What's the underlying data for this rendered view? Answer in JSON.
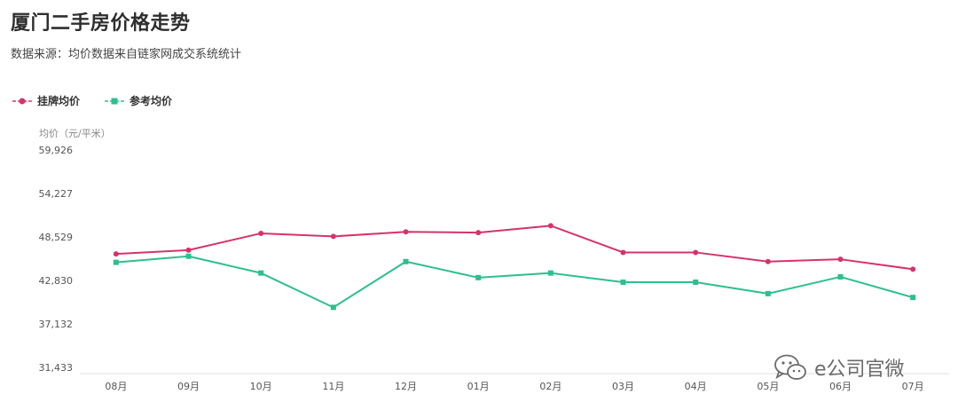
{
  "header": {
    "title": "厦门二手房价格走势",
    "subtitle": "数据来源：均价数据来自链家网成交系统统计"
  },
  "legend": {
    "items": [
      {
        "label": "挂牌均价",
        "color": "#d6336c",
        "marker": "circle"
      },
      {
        "label": "参考均价",
        "color": "#2dbf8f",
        "marker": "square"
      }
    ]
  },
  "watermark": {
    "text": "e公司官微",
    "icon": "wechat-icon"
  },
  "chart_data": {
    "type": "line",
    "title": "厦门二手房价格走势",
    "ylabel": "均价（元/平米）",
    "xlabel": "",
    "categories": [
      "08月",
      "09月",
      "10月",
      "11月",
      "12月",
      "01月",
      "02月",
      "03月",
      "04月",
      "05月",
      "06月",
      "07月"
    ],
    "yticks": [
      "59,926",
      "54,227",
      "48,529",
      "42,830",
      "37,132",
      "31,433"
    ],
    "ylim": [
      31433,
      59926
    ],
    "grid": false,
    "legend_position": "top-left",
    "series": [
      {
        "name": "挂牌均价",
        "color": "#d6336c",
        "marker": "circle",
        "values": [
          46300,
          46800,
          49000,
          48600,
          49200,
          49100,
          50000,
          46500,
          46500,
          45300,
          45600,
          44300
        ]
      },
      {
        "name": "参考均价",
        "color": "#2dbf8f",
        "marker": "square",
        "values": [
          45200,
          46000,
          43800,
          39300,
          45300,
          43200,
          43800,
          42600,
          42600,
          41100,
          43300,
          40600
        ]
      }
    ]
  }
}
